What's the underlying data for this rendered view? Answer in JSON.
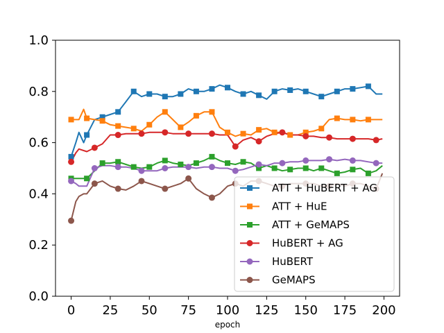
{
  "chart_data": {
    "type": "line",
    "title": "",
    "xlabel": "epoch",
    "ylabel": "",
    "xlim": [
      -10,
      210
    ],
    "ylim": [
      0.0,
      1.0
    ],
    "xticks": [
      0,
      25,
      50,
      75,
      100,
      125,
      150,
      175,
      200
    ],
    "yticks": [
      0.0,
      0.2,
      0.4,
      0.6,
      0.8,
      1.0
    ],
    "xtick_labels": [
      "0",
      "25",
      "50",
      "75",
      "100",
      "125",
      "150",
      "175",
      "200"
    ],
    "ytick_labels": [
      "0.0",
      "0.2",
      "0.4",
      "0.6",
      "0.8",
      "1.0"
    ],
    "grid": false,
    "legend_position": "lower-right",
    "series": [
      {
        "name": "ATT + HuBERT + AG",
        "color": "#1f77b4",
        "marker": "square",
        "x": [
          0,
          3,
          5,
          8,
          10,
          15,
          20,
          25,
          30,
          35,
          40,
          45,
          50,
          55,
          60,
          65,
          70,
          75,
          80,
          85,
          90,
          95,
          100,
          105,
          110,
          115,
          120,
          125,
          130,
          135,
          140,
          145,
          150,
          155,
          160,
          165,
          170,
          175,
          180,
          185,
          190,
          195,
          199
        ],
        "y": [
          0.545,
          0.6,
          0.64,
          0.6,
          0.63,
          0.69,
          0.7,
          0.71,
          0.72,
          0.76,
          0.8,
          0.78,
          0.79,
          0.79,
          0.78,
          0.78,
          0.79,
          0.81,
          0.8,
          0.8,
          0.81,
          0.825,
          0.815,
          0.8,
          0.79,
          0.8,
          0.785,
          0.77,
          0.8,
          0.81,
          0.805,
          0.81,
          0.8,
          0.79,
          0.78,
          0.79,
          0.8,
          0.81,
          0.81,
          0.815,
          0.82,
          0.79,
          0.79
        ],
        "marker_x": [
          0,
          10,
          20,
          30,
          40,
          50,
          60,
          70,
          80,
          90,
          100,
          110,
          120,
          130,
          140,
          150,
          160,
          170,
          180,
          190
        ]
      },
      {
        "name": "ATT + HuE",
        "color": "#ff7f0e",
        "marker": "square",
        "x": [
          0,
          5,
          8,
          10,
          15,
          20,
          25,
          30,
          35,
          40,
          45,
          50,
          55,
          60,
          65,
          70,
          75,
          80,
          85,
          90,
          95,
          100,
          105,
          110,
          115,
          120,
          125,
          130,
          135,
          140,
          145,
          150,
          155,
          160,
          165,
          170,
          175,
          180,
          185,
          190,
          195,
          199
        ],
        "y": [
          0.69,
          0.69,
          0.73,
          0.695,
          0.69,
          0.685,
          0.67,
          0.665,
          0.66,
          0.655,
          0.645,
          0.67,
          0.7,
          0.72,
          0.69,
          0.66,
          0.68,
          0.705,
          0.72,
          0.72,
          0.66,
          0.64,
          0.625,
          0.635,
          0.63,
          0.65,
          0.655,
          0.64,
          0.64,
          0.63,
          0.63,
          0.64,
          0.645,
          0.655,
          0.69,
          0.695,
          0.69,
          0.69,
          0.685,
          0.69,
          0.69,
          0.69
        ],
        "marker_x": [
          0,
          10,
          20,
          30,
          40,
          50,
          60,
          70,
          80,
          90,
          100,
          110,
          120,
          130,
          140,
          150,
          160,
          170,
          180,
          190
        ]
      },
      {
        "name": "ATT + GeMAPS",
        "color": "#2ca02c",
        "marker": "square",
        "x": [
          0,
          5,
          10,
          15,
          20,
          25,
          30,
          35,
          40,
          45,
          50,
          55,
          60,
          65,
          70,
          75,
          80,
          85,
          90,
          95,
          100,
          105,
          110,
          115,
          120,
          125,
          130,
          135,
          140,
          145,
          150,
          155,
          160,
          165,
          170,
          175,
          180,
          185,
          190,
          195,
          199
        ],
        "y": [
          0.46,
          0.46,
          0.46,
          0.49,
          0.52,
          0.52,
          0.525,
          0.515,
          0.505,
          0.5,
          0.505,
          0.52,
          0.53,
          0.52,
          0.515,
          0.51,
          0.52,
          0.53,
          0.545,
          0.53,
          0.52,
          0.515,
          0.525,
          0.52,
          0.5,
          0.51,
          0.5,
          0.49,
          0.495,
          0.5,
          0.5,
          0.49,
          0.5,
          0.49,
          0.48,
          0.485,
          0.495,
          0.5,
          0.48,
          0.49,
          0.51
        ],
        "marker_x": [
          0,
          10,
          20,
          30,
          40,
          50,
          60,
          70,
          80,
          90,
          100,
          110,
          120,
          130,
          140,
          150,
          160,
          170,
          180,
          190
        ]
      },
      {
        "name": "HuBERT + AG",
        "color": "#d62728",
        "marker": "circle",
        "x": [
          0,
          3,
          5,
          10,
          15,
          20,
          25,
          30,
          35,
          40,
          45,
          50,
          55,
          60,
          65,
          70,
          75,
          80,
          85,
          90,
          95,
          100,
          105,
          110,
          115,
          120,
          125,
          130,
          135,
          140,
          145,
          150,
          155,
          160,
          165,
          170,
          175,
          180,
          185,
          190,
          195,
          199
        ],
        "y": [
          0.525,
          0.56,
          0.575,
          0.565,
          0.58,
          0.595,
          0.63,
          0.63,
          0.635,
          0.635,
          0.635,
          0.64,
          0.64,
          0.64,
          0.635,
          0.635,
          0.635,
          0.635,
          0.635,
          0.635,
          0.63,
          0.63,
          0.585,
          0.61,
          0.62,
          0.605,
          0.625,
          0.635,
          0.64,
          0.63,
          0.63,
          0.625,
          0.625,
          0.62,
          0.62,
          0.615,
          0.615,
          0.615,
          0.615,
          0.615,
          0.61,
          0.615
        ],
        "marker_x": [
          0,
          15,
          30,
          45,
          60,
          75,
          90,
          105,
          120,
          135,
          150,
          165,
          180,
          195
        ]
      },
      {
        "name": "HuBERT",
        "color": "#9467bd",
        "marker": "circle",
        "x": [
          0,
          3,
          5,
          8,
          10,
          15,
          20,
          25,
          30,
          35,
          40,
          45,
          50,
          55,
          60,
          65,
          70,
          75,
          80,
          85,
          90,
          95,
          100,
          105,
          110,
          115,
          120,
          125,
          130,
          135,
          140,
          145,
          150,
          155,
          160,
          165,
          170,
          175,
          180,
          185,
          190,
          195,
          199
        ],
        "y": [
          0.45,
          0.44,
          0.43,
          0.43,
          0.43,
          0.5,
          0.51,
          0.51,
          0.505,
          0.505,
          0.5,
          0.49,
          0.49,
          0.49,
          0.5,
          0.505,
          0.505,
          0.505,
          0.5,
          0.505,
          0.505,
          0.5,
          0.5,
          0.49,
          0.495,
          0.505,
          0.515,
          0.51,
          0.52,
          0.52,
          0.525,
          0.525,
          0.53,
          0.53,
          0.53,
          0.535,
          0.53,
          0.535,
          0.53,
          0.53,
          0.525,
          0.52,
          0.52
        ],
        "marker_x": [
          0,
          15,
          30,
          45,
          60,
          75,
          90,
          105,
          120,
          135,
          150,
          165,
          180,
          195
        ]
      },
      {
        "name": "GeMAPS",
        "color": "#8c564b",
        "marker": "circle",
        "x": [
          0,
          3,
          5,
          8,
          10,
          15,
          20,
          25,
          30,
          35,
          40,
          45,
          50,
          55,
          60,
          65,
          70,
          75,
          80,
          85,
          90,
          95,
          100,
          105,
          110,
          115,
          120,
          125,
          130,
          135,
          140,
          145,
          150,
          155,
          160,
          165,
          170,
          175,
          180,
          185,
          190,
          195,
          199
        ],
        "y": [
          0.295,
          0.37,
          0.39,
          0.4,
          0.4,
          0.44,
          0.45,
          0.43,
          0.42,
          0.415,
          0.43,
          0.45,
          0.44,
          0.43,
          0.42,
          0.43,
          0.44,
          0.46,
          0.42,
          0.4,
          0.385,
          0.4,
          0.43,
          0.44,
          0.43,
          0.45,
          0.45,
          0.44,
          0.43,
          0.43,
          0.44,
          0.44,
          0.44,
          0.44,
          0.43,
          0.43,
          0.44,
          0.43,
          0.44,
          0.44,
          0.43,
          0.42,
          0.48
        ],
        "marker_x": [
          0,
          15,
          30,
          45,
          60,
          75,
          90,
          105,
          120,
          135,
          150,
          165,
          180,
          195
        ]
      }
    ]
  }
}
